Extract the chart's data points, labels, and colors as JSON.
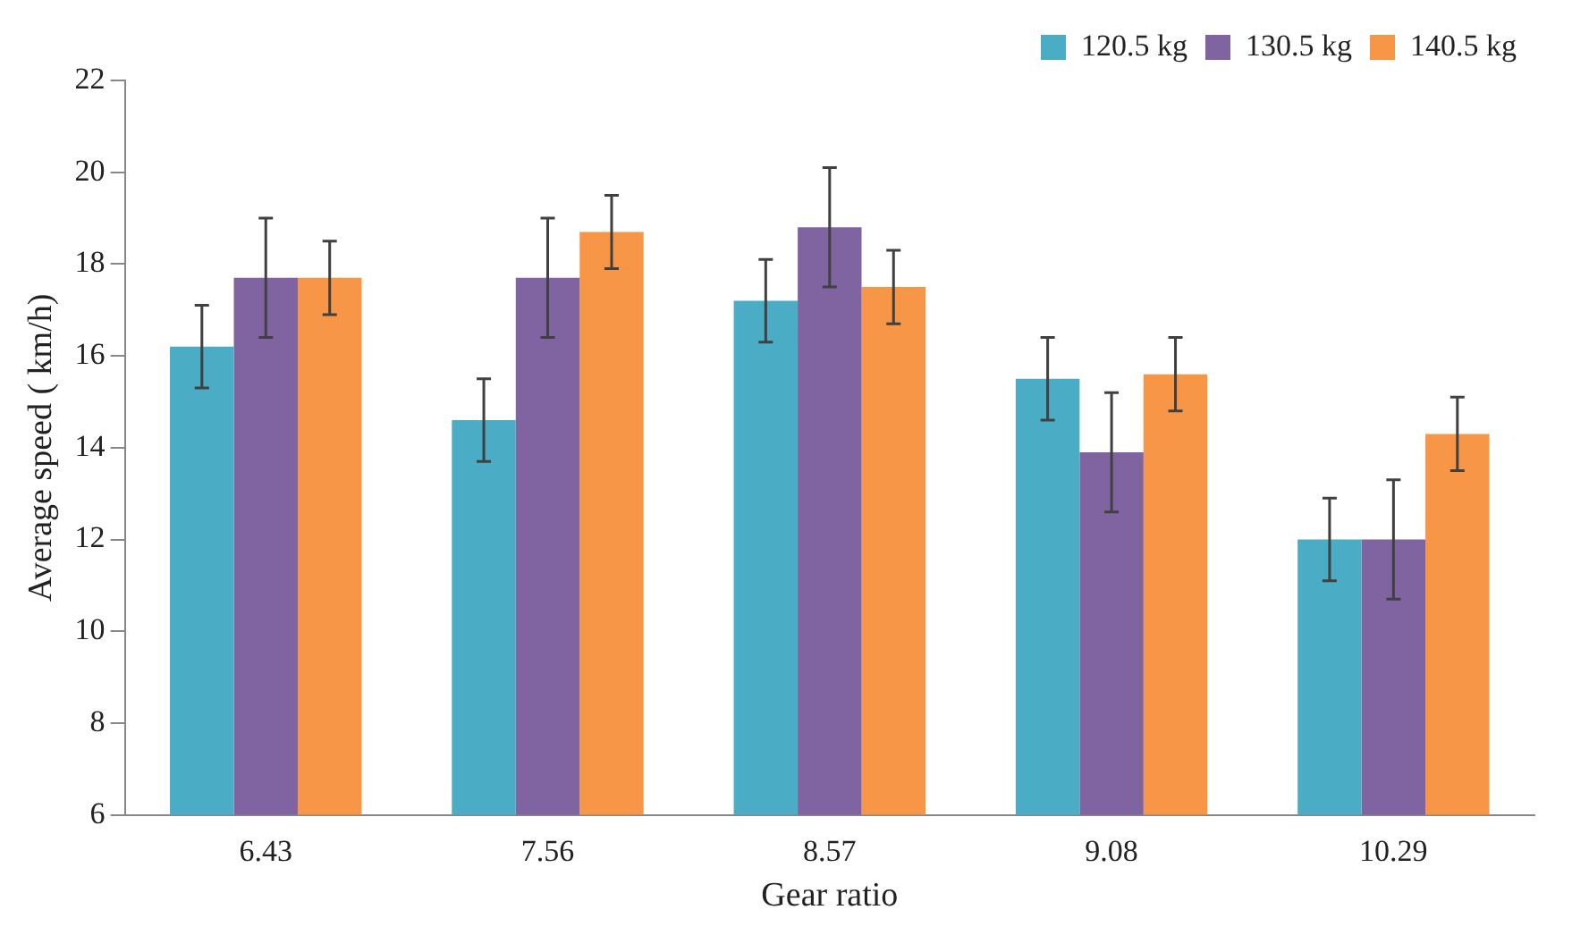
{
  "chart_data": {
    "type": "bar",
    "xlabel": "Gear ratio",
    "ylabel": "Average speed ( km/h)",
    "categories": [
      "6.43",
      "7.56",
      "8.57",
      "9.08",
      "10.29"
    ],
    "series": [
      {
        "name": "120.5 kg",
        "color": "#4bacc6",
        "values": [
          16.2,
          14.6,
          17.2,
          15.5,
          12.0
        ],
        "errors": [
          0.9,
          0.9,
          0.9,
          0.9,
          0.9
        ]
      },
      {
        "name": "130.5 kg",
        "color": "#8064a2",
        "values": [
          17.7,
          17.7,
          18.8,
          13.9,
          12.0
        ],
        "errors": [
          1.3,
          1.3,
          1.3,
          1.3,
          1.3
        ]
      },
      {
        "name": "140.5 kg",
        "color": "#f79646",
        "values": [
          17.7,
          18.7,
          17.5,
          15.6,
          14.3
        ],
        "errors": [
          0.8,
          0.8,
          0.8,
          0.8,
          0.8
        ]
      }
    ],
    "ylim": [
      6,
      22
    ],
    "yticks": [
      6,
      8,
      10,
      12,
      14,
      16,
      18,
      20,
      22
    ],
    "grid": false,
    "legend": "top right"
  }
}
